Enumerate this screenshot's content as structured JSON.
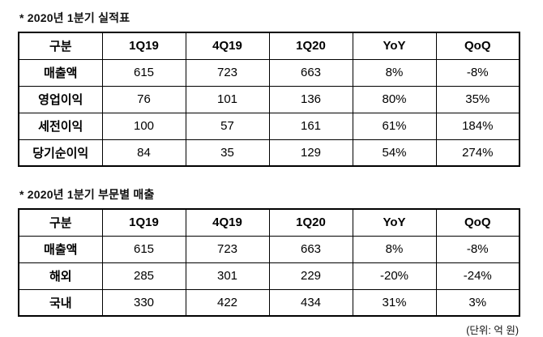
{
  "page": {
    "unit_note": "(단위: 억 원)"
  },
  "tables": [
    {
      "title": "*  2020년 1분기 실적표",
      "headers": [
        "구분",
        "1Q19",
        "4Q19",
        "1Q20",
        "YoY",
        "QoQ"
      ],
      "rows": [
        [
          "매출액",
          "615",
          "723",
          "663",
          "8%",
          "-8%"
        ],
        [
          "영업이익",
          "76",
          "101",
          "136",
          "80%",
          "35%"
        ],
        [
          "세전이익",
          "100",
          "57",
          "161",
          "61%",
          "184%"
        ],
        [
          "당기순이익",
          "84",
          "35",
          "129",
          "54%",
          "274%"
        ]
      ]
    },
    {
      "title": "* 2020년 1분기 부문별 매출",
      "headers": [
        "구분",
        "1Q19",
        "4Q19",
        "1Q20",
        "YoY",
        "QoQ"
      ],
      "rows": [
        [
          "매출액",
          "615",
          "723",
          "663",
          "8%",
          "-8%"
        ],
        [
          "해외",
          "285",
          "301",
          "229",
          "-20%",
          "-24%"
        ],
        [
          "국내",
          "330",
          "422",
          "434",
          "31%",
          "3%"
        ]
      ]
    }
  ]
}
